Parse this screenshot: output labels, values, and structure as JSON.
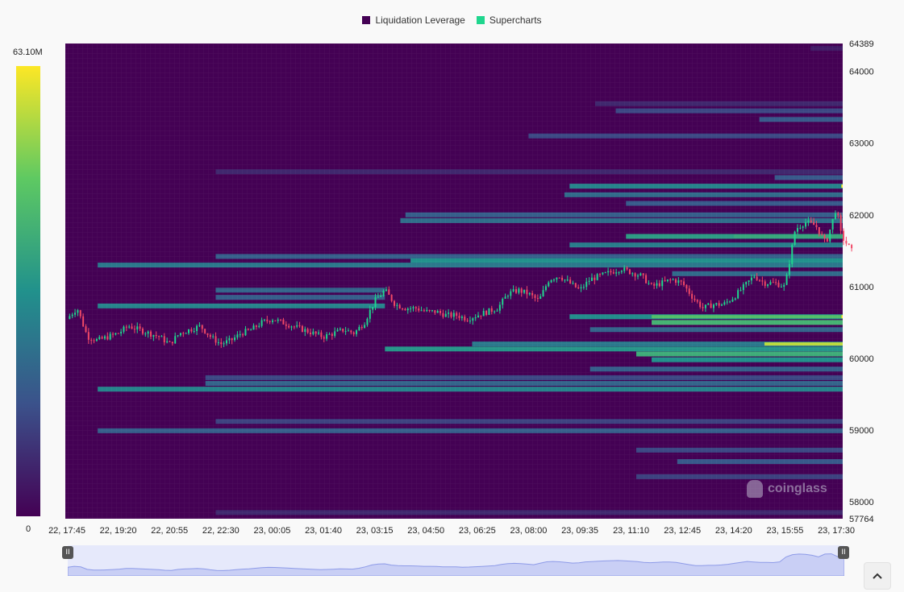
{
  "legend": {
    "items": [
      {
        "label": "Liquidation Leverage",
        "color": "#440154"
      },
      {
        "label": "Supercharts",
        "color": "#1fd68e"
      }
    ]
  },
  "colorbar": {
    "max_label": "63.10M",
    "min_label": "0",
    "colors": [
      "#440154",
      "#3b528b",
      "#21918c",
      "#5ec962",
      "#fde725"
    ]
  },
  "watermark": {
    "text": "coinglass"
  },
  "navigator": {
    "left_handle": "II",
    "right_handle": "II"
  },
  "chart_data": {
    "type": "heatmap",
    "y_axis": {
      "min": 57764,
      "max": 64389,
      "ticks": [
        "64389",
        "64000",
        "63000",
        "62000",
        "61000",
        "60000",
        "59000",
        "58000",
        "57764"
      ],
      "tick_values": [
        64389,
        64000,
        63000,
        62000,
        61000,
        60000,
        59000,
        58000,
        57764
      ]
    },
    "x_axis": {
      "ticks": [
        "22, 17:45",
        "22, 19:20",
        "22, 20:55",
        "22, 22:30",
        "23, 00:05",
        "23, 01:40",
        "23, 03:15",
        "23, 04:50",
        "23, 06:25",
        "23, 08:00",
        "23, 09:35",
        "23, 11:10",
        "23, 12:45",
        "23, 14:20",
        "23, 15:55",
        "23, 17:30"
      ]
    },
    "colorscale": {
      "min": 0,
      "max": 63100000
    },
    "liquidation_bands": [
      {
        "price": 64320,
        "start": 14.5,
        "end": 15.3,
        "value": 0.08
      },
      {
        "price": 63550,
        "start": 10.3,
        "end": 15.3,
        "value": 0.12
      },
      {
        "price": 63450,
        "start": 10.7,
        "end": 15.3,
        "value": 0.22
      },
      {
        "price": 63330,
        "start": 13.5,
        "end": 15.3,
        "value": 0.28
      },
      {
        "price": 63100,
        "start": 9.0,
        "end": 15.3,
        "value": 0.22
      },
      {
        "price": 62600,
        "start": 2.9,
        "end": 15.3,
        "value": 0.12
      },
      {
        "price": 62520,
        "start": 13.8,
        "end": 15.3,
        "value": 0.28
      },
      {
        "price": 62400,
        "start": 9.8,
        "end": 15.3,
        "value": 0.45
      },
      {
        "price": 62280,
        "start": 9.7,
        "end": 15.3,
        "value": 0.35
      },
      {
        "price": 62160,
        "start": 10.9,
        "end": 15.3,
        "value": 0.28
      },
      {
        "price": 62000,
        "start": 6.6,
        "end": 15.3,
        "value": 0.3
      },
      {
        "price": 61920,
        "start": 6.5,
        "end": 15.3,
        "value": 0.36
      },
      {
        "price": 61700,
        "start": 10.9,
        "end": 15.3,
        "value": 0.55
      },
      {
        "price": 61580,
        "start": 9.8,
        "end": 15.3,
        "value": 0.42
      },
      {
        "price": 61420,
        "start": 2.9,
        "end": 15.3,
        "value": 0.3
      },
      {
        "price": 61360,
        "start": 6.7,
        "end": 15.3,
        "value": 0.5
      },
      {
        "price": 61300,
        "start": 0.6,
        "end": 15.3,
        "value": 0.4
      },
      {
        "price": 61180,
        "start": 11.8,
        "end": 15.3,
        "value": 0.35
      },
      {
        "price": 60950,
        "start": 2.9,
        "end": 6.2,
        "value": 0.32
      },
      {
        "price": 60850,
        "start": 2.9,
        "end": 6.2,
        "value": 0.3
      },
      {
        "price": 60730,
        "start": 0.6,
        "end": 6.2,
        "value": 0.45
      },
      {
        "price": 60580,
        "start": 9.8,
        "end": 15.3,
        "value": 0.48
      },
      {
        "price": 60500,
        "start": 11.4,
        "end": 15.3,
        "value": 0.65
      },
      {
        "price": 60400,
        "start": 10.2,
        "end": 15.3,
        "value": 0.32
      },
      {
        "price": 60200,
        "start": 7.9,
        "end": 15.3,
        "value": 0.4
      },
      {
        "price": 60130,
        "start": 6.2,
        "end": 15.3,
        "value": 0.52
      },
      {
        "price": 60060,
        "start": 11.1,
        "end": 15.3,
        "value": 0.62
      },
      {
        "price": 59980,
        "start": 11.4,
        "end": 15.3,
        "value": 0.5
      },
      {
        "price": 59850,
        "start": 10.2,
        "end": 15.3,
        "value": 0.3
      },
      {
        "price": 59730,
        "start": 2.7,
        "end": 15.3,
        "value": 0.22
      },
      {
        "price": 59650,
        "start": 2.7,
        "end": 15.3,
        "value": 0.32
      },
      {
        "price": 59570,
        "start": 0.6,
        "end": 15.3,
        "value": 0.45
      },
      {
        "price": 59120,
        "start": 2.9,
        "end": 15.3,
        "value": 0.2
      },
      {
        "price": 58990,
        "start": 0.6,
        "end": 15.3,
        "value": 0.3
      },
      {
        "price": 58720,
        "start": 11.1,
        "end": 15.3,
        "value": 0.22
      },
      {
        "price": 58560,
        "start": 11.9,
        "end": 15.3,
        "value": 0.28
      },
      {
        "price": 58350,
        "start": 11.1,
        "end": 15.3,
        "value": 0.2
      },
      {
        "price": 57850,
        "start": 2.9,
        "end": 15.3,
        "value": 0.12
      }
    ],
    "hot_spots": [
      {
        "price": 62400,
        "start": 15.1,
        "end": 15.3,
        "value": 1.0
      },
      {
        "price": 60580,
        "start": 15.1,
        "end": 15.3,
        "value": 1.0
      },
      {
        "price": 60200,
        "start": 13.6,
        "end": 15.3,
        "value": 0.9
      },
      {
        "price": 60580,
        "start": 11.4,
        "end": 15.1,
        "value": 0.7
      },
      {
        "price": 61700,
        "start": 13.0,
        "end": 15.3,
        "value": 0.6
      }
    ],
    "price_series": {
      "t": [
        0,
        0.2,
        0.4,
        0.6,
        0.8,
        1.0,
        1.2,
        1.4,
        1.6,
        1.8,
        2.0,
        2.2,
        2.4,
        2.6,
        2.8,
        3.0,
        3.2,
        3.4,
        3.6,
        3.8,
        4.0,
        4.2,
        4.4,
        4.6,
        4.8,
        5.0,
        5.2,
        5.4,
        5.6,
        5.8,
        6.0,
        6.2,
        6.4,
        6.6,
        6.8,
        7.0,
        7.2,
        7.4,
        7.6,
        7.8,
        8.0,
        8.2,
        8.4,
        8.6,
        8.8,
        9.0,
        9.2,
        9.4,
        9.6,
        9.8,
        10.0,
        10.2,
        10.4,
        10.6,
        10.8,
        11.0,
        11.2,
        11.4,
        11.6,
        11.8,
        12.0,
        12.2,
        12.4,
        12.6,
        12.8,
        13.0,
        13.2,
        13.4,
        13.6,
        13.8,
        14.0,
        14.2,
        14.4,
        14.6,
        14.8,
        15.0,
        15.1,
        15.2,
        15.3
      ],
      "price": [
        60550,
        60700,
        60300,
        60250,
        60300,
        60350,
        60450,
        60400,
        60350,
        60300,
        60200,
        60350,
        60400,
        60450,
        60300,
        60200,
        60250,
        60350,
        60400,
        60500,
        60550,
        60500,
        60450,
        60400,
        60350,
        60300,
        60350,
        60400,
        60350,
        60500,
        60800,
        60950,
        60750,
        60700,
        60700,
        60650,
        60650,
        60600,
        60600,
        60550,
        60600,
        60650,
        60700,
        60900,
        60950,
        60900,
        60800,
        61100,
        61150,
        61050,
        60950,
        61100,
        61150,
        61200,
        61250,
        61200,
        61150,
        61000,
        61050,
        61100,
        61050,
        60850,
        60700,
        60750,
        60750,
        60850,
        61000,
        61150,
        61050,
        61050,
        61000,
        61800,
        61900,
        61850,
        61600,
        62100,
        61700,
        61600,
        61500
      ]
    }
  }
}
